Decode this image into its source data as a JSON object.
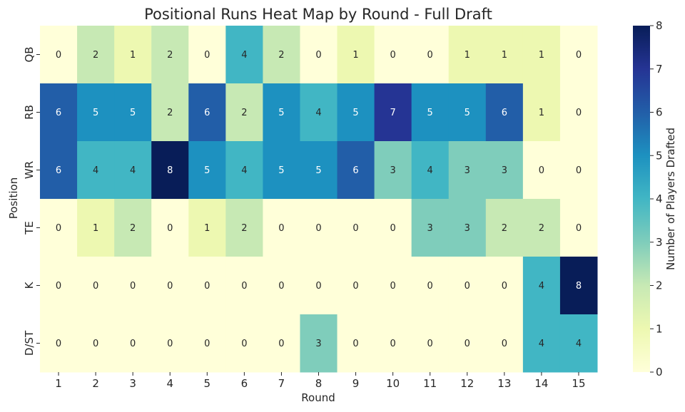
{
  "chart_data": {
    "type": "heatmap",
    "title": "Positional Runs Heat Map by Round - Full Draft",
    "xlabel": "Round",
    "ylabel": "Position",
    "x_categories": [
      "1",
      "2",
      "3",
      "4",
      "5",
      "6",
      "7",
      "8",
      "9",
      "10",
      "11",
      "12",
      "13",
      "14",
      "15"
    ],
    "y_categories": [
      "QB",
      "RB",
      "WR",
      "TE",
      "K",
      "D/ST"
    ],
    "values": [
      [
        0,
        2,
        1,
        2,
        0,
        4,
        2,
        0,
        1,
        0,
        0,
        1,
        1,
        1,
        0
      ],
      [
        6,
        5,
        5,
        2,
        6,
        2,
        5,
        4,
        5,
        7,
        5,
        5,
        6,
        1,
        0
      ],
      [
        6,
        4,
        4,
        8,
        5,
        4,
        5,
        5,
        6,
        3,
        4,
        3,
        3,
        0,
        0
      ],
      [
        0,
        1,
        2,
        0,
        1,
        2,
        0,
        0,
        0,
        0,
        3,
        3,
        2,
        2,
        0
      ],
      [
        0,
        0,
        0,
        0,
        0,
        0,
        0,
        0,
        0,
        0,
        0,
        0,
        0,
        4,
        8
      ],
      [
        0,
        0,
        0,
        0,
        0,
        0,
        0,
        3,
        0,
        0,
        0,
        0,
        0,
        4,
        4
      ]
    ],
    "color_scale": {
      "name": "YlGnBu",
      "min": 0,
      "max": 8,
      "label": "Number of Players Drafted",
      "ticks": [
        0,
        1,
        2,
        3,
        4,
        5,
        6,
        7,
        8
      ]
    },
    "grid": false,
    "legend": "colorbar-right"
  }
}
